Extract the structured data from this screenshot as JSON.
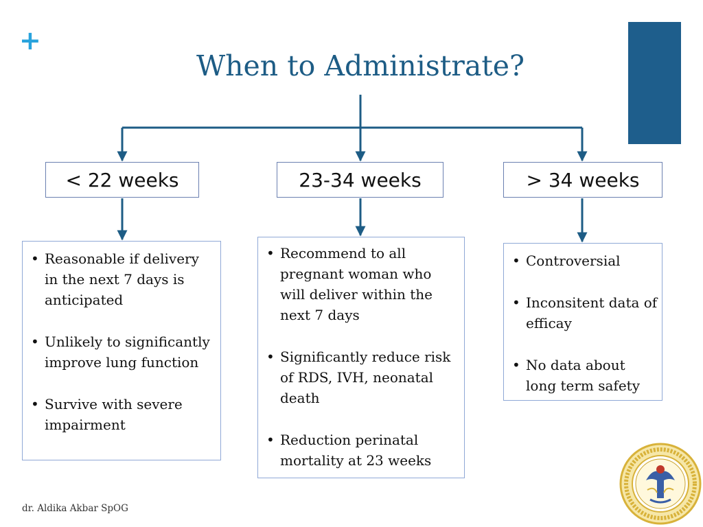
{
  "slide": {
    "plus_glyph": "+",
    "title": "When to Administrate?",
    "footer": "dr. Aldika Akbar SpOG"
  },
  "categories": [
    {
      "label": "< 22 weeks",
      "bullets": [
        "Reasonable if delivery in the next 7 days is anticipated",
        "Unlikely to significantly improve lung function",
        "Survive with severe impairment"
      ]
    },
    {
      "label": "23-34 weeks",
      "bullets": [
        "Recommend to all pregnant woman who will deliver within the next 7 days",
        "Significantly reduce risk of RDS, IVH, neonatal death",
        "Reduction perinatal mortality at 23 weeks"
      ]
    },
    {
      "label": "> 34 weeks",
      "bullets": [
        "Controversial",
        "Inconsitent data of efficay",
        "No data about long term safety"
      ]
    }
  ],
  "colors": {
    "title": "#1d5c85",
    "accent_plus": "#29a3dd",
    "corner_block": "#1e5e8c",
    "connector": "#1d5c85",
    "logo_gold": "#d8b23a",
    "logo_blue": "#3a5fa6"
  },
  "icons": {
    "logo": "university-seal-icon"
  }
}
